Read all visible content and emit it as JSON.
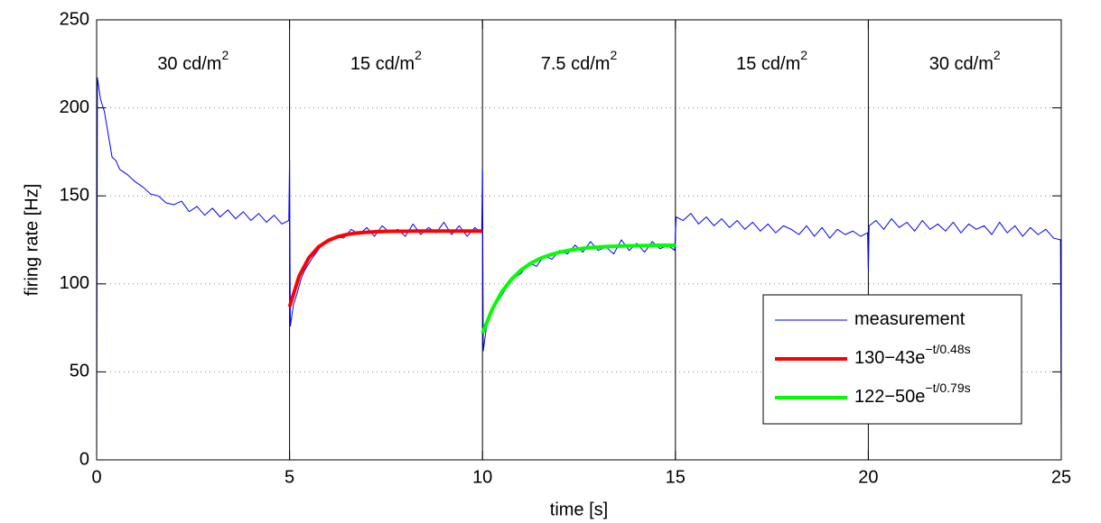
{
  "chart_data": {
    "type": "line",
    "xlabel": "time [s]",
    "ylabel": "firing rate [Hz]",
    "xlim": [
      0,
      25
    ],
    "ylim": [
      0,
      250
    ],
    "xticks": [
      0,
      5,
      10,
      15,
      20,
      25
    ],
    "yticks": [
      0,
      50,
      100,
      150,
      200,
      250
    ],
    "grid": true,
    "legend": "lower right",
    "boundaries": [
      5,
      10,
      15,
      20
    ],
    "annotations": [
      {
        "text": "30 cd/m",
        "sup": "2"
      },
      {
        "text": "15 cd/m",
        "sup": "2"
      },
      {
        "text": "7.5 cd/m",
        "sup": "2"
      },
      {
        "text": "15 cd/m",
        "sup": "2"
      },
      {
        "text": "30 cd/m",
        "sup": "2"
      }
    ],
    "series": [
      {
        "name": "measurement",
        "color": "#0000ff",
        "width": 1,
        "x": [
          0,
          0.02,
          0.1,
          0.2,
          0.3,
          0.4,
          0.5,
          0.6,
          0.8,
          1.0,
          1.2,
          1.4,
          1.6,
          1.8,
          2.0,
          2.2,
          2.4,
          2.6,
          2.8,
          3.0,
          3.2,
          3.4,
          3.6,
          3.8,
          4.0,
          4.2,
          4.4,
          4.6,
          4.8,
          4.98,
          5.0,
          5.02,
          5.1,
          5.2,
          5.3,
          5.4,
          5.6,
          5.8,
          6.0,
          6.2,
          6.4,
          6.6,
          6.8,
          7.0,
          7.2,
          7.4,
          7.6,
          7.8,
          8.0,
          8.2,
          8.4,
          8.6,
          8.8,
          9.0,
          9.2,
          9.4,
          9.6,
          9.8,
          9.98,
          10.0,
          10.02,
          10.1,
          10.2,
          10.4,
          10.6,
          10.8,
          11.0,
          11.2,
          11.4,
          11.6,
          11.8,
          12.0,
          12.2,
          12.4,
          12.6,
          12.8,
          13.0,
          13.2,
          13.4,
          13.6,
          13.8,
          14.0,
          14.2,
          14.4,
          14.6,
          14.8,
          14.98,
          15.02,
          15.2,
          15.4,
          15.6,
          15.8,
          16.0,
          16.2,
          16.4,
          16.6,
          16.8,
          17.0,
          17.2,
          17.4,
          17.6,
          17.8,
          18.0,
          18.2,
          18.4,
          18.6,
          18.8,
          19.0,
          19.2,
          19.4,
          19.6,
          19.8,
          19.98,
          20.0,
          20.02,
          20.2,
          20.4,
          20.6,
          20.8,
          21.0,
          21.2,
          21.4,
          21.6,
          21.8,
          22.0,
          22.2,
          22.4,
          22.6,
          22.8,
          23.0,
          23.2,
          23.4,
          23.6,
          23.8,
          24.0,
          24.2,
          24.4,
          24.6,
          24.8,
          24.98,
          25.0
        ],
        "values": [
          0,
          217,
          205,
          198,
          185,
          172,
          170,
          165,
          162,
          158,
          155,
          151,
          150,
          146,
          145,
          147,
          141,
          144,
          139,
          143,
          138,
          142,
          137,
          141,
          136,
          140,
          135,
          139,
          134,
          136,
          170,
          76,
          88,
          95,
          103,
          108,
          115,
          121,
          124,
          127,
          126,
          131,
          128,
          132,
          127,
          133,
          129,
          131,
          127,
          134,
          128,
          132,
          129,
          135,
          128,
          133,
          127,
          132,
          129,
          165,
          62,
          75,
          82,
          90,
          97,
          103,
          106,
          112,
          110,
          116,
          114,
          119,
          117,
          122,
          118,
          124,
          119,
          121,
          117,
          125,
          119,
          123,
          118,
          124,
          120,
          122,
          119,
          138,
          136,
          140,
          134,
          138,
          133,
          137,
          132,
          136,
          131,
          135,
          130,
          134,
          129,
          133,
          131,
          128,
          133,
          127,
          132,
          126,
          131,
          128,
          130,
          127,
          129,
          108,
          133,
          136,
          131,
          137,
          132,
          135,
          130,
          136,
          131,
          134,
          130,
          135,
          129,
          134,
          131,
          133,
          128,
          135,
          129,
          133,
          127,
          132,
          128,
          131,
          126,
          125,
          17
        ]
      },
      {
        "name": "130−43e",
        "superscript": "−t/0.48s",
        "color": "#ff0000",
        "width": 4,
        "x": [
          5,
          5.25,
          5.5,
          5.75,
          6,
          6.25,
          6.5,
          6.75,
          7,
          7.25,
          7.5,
          7.75,
          8,
          8.25,
          8.5,
          8.75,
          9,
          9.25,
          9.5,
          9.75,
          10
        ],
        "values": [
          87,
          104.5,
          114.8,
          121,
          124.6,
          126.8,
          128.1,
          128.9,
          129.3,
          129.6,
          129.8,
          129.9,
          129.9,
          130,
          130,
          130,
          130,
          130,
          130,
          130,
          130
        ]
      },
      {
        "name": "122−50e",
        "superscript": "−t/0.79s",
        "color": "#00ff00",
        "width": 4,
        "x": [
          10,
          10.25,
          10.5,
          10.75,
          11,
          11.25,
          11.5,
          11.75,
          12,
          12.25,
          12.5,
          12.75,
          13,
          13.25,
          13.5,
          13.75,
          14,
          14.25,
          14.5,
          14.75,
          15
        ],
        "values": [
          72,
          85.5,
          95.5,
          102.6,
          107.9,
          111.7,
          114.5,
          116.5,
          118,
          119.1,
          119.9,
          120.5,
          120.9,
          121.2,
          121.4,
          121.6,
          121.7,
          121.8,
          121.9,
          121.9,
          121.9
        ]
      }
    ]
  }
}
